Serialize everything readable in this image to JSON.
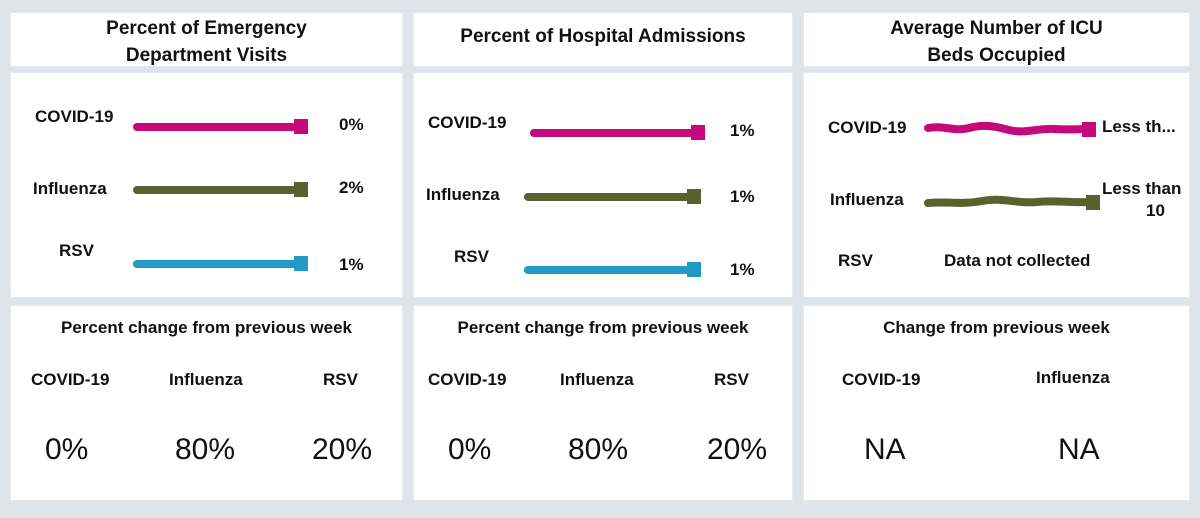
{
  "colors": {
    "covid": "#c6097a",
    "influenza": "#5a602f",
    "rsv": "#2299c6"
  },
  "ed": {
    "title_line1": "Percent of Emergency",
    "title_line2": "Department Visits",
    "rows": [
      {
        "label": "COVID-19",
        "value": "0%"
      },
      {
        "label": "Influenza",
        "value": "2%"
      },
      {
        "label": "RSV",
        "value": "1%"
      }
    ],
    "change_title": "Percent change from previous week",
    "change_cols": [
      {
        "label": "COVID-19",
        "value": "0%"
      },
      {
        "label": "Influenza",
        "value": "80%"
      },
      {
        "label": "RSV",
        "value": "20%"
      }
    ]
  },
  "hosp": {
    "title": "Percent of Hospital Admissions",
    "rows": [
      {
        "label": "COVID-19",
        "value": "1%"
      },
      {
        "label": "Influenza",
        "value": "1%"
      },
      {
        "label": "RSV",
        "value": "1%"
      }
    ],
    "change_title": "Percent change from previous week",
    "change_cols": [
      {
        "label": "COVID-19",
        "value": "0%"
      },
      {
        "label": "Influenza",
        "value": "80%"
      },
      {
        "label": "RSV",
        "value": "20%"
      }
    ]
  },
  "icu": {
    "title_line1": "Average Number of ICU",
    "title_line2": "Beds Occupied",
    "rows": [
      {
        "label": "COVID-19",
        "value": "Less th..."
      },
      {
        "label": "Influenza",
        "value_line1": "Less than",
        "value_line2": "10"
      },
      {
        "label": "RSV",
        "value": "Data not collected"
      }
    ],
    "change_title": "Change from previous week",
    "change_cols": [
      {
        "label": "COVID-19",
        "value": "NA"
      },
      {
        "label": "Influenza",
        "value": "NA"
      }
    ]
  }
}
